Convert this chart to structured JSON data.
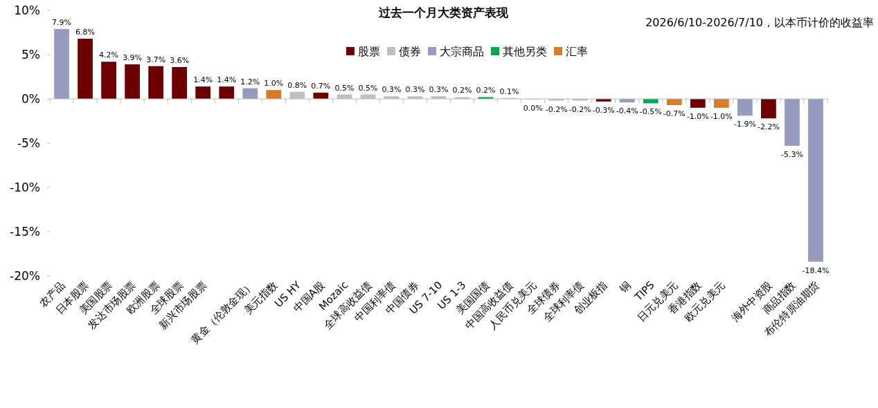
{
  "chart_data": {
    "type": "bar",
    "title": "过去一个月大类资产表现",
    "subtitle": "2026/6/10-2026/7/10，以本币计价的收益率",
    "categories": [
      "农产品",
      "日本股票",
      "美国股票",
      "发达市场股票",
      "欧洲股票",
      "全球股票",
      "新兴市场股票",
      null,
      "黄金（伦敦金现）",
      "美元指数",
      "US HY",
      "中国A股",
      "Mozaic",
      "全球高收益债",
      "中国利率债",
      "中国债券",
      "US 7-10",
      "US 1-3",
      "美国国债",
      "中国高收益债",
      "人民币兑美元",
      "全球债券",
      "全球利率债",
      "创业板指",
      "铜",
      "TIPS",
      "日元兑美元",
      "香港指数",
      "欧元兑美元",
      null,
      "海外中资股",
      "商品指数",
      "布伦特原油期货"
    ],
    "series": [
      {
        "name": "股票",
        "color": "#6f0000",
        "values": [
          null,
          6.8,
          4.2,
          3.9,
          3.7,
          3.6,
          1.4,
          1.4,
          null,
          null,
          null,
          0.7,
          null,
          null,
          null,
          null,
          null,
          null,
          null,
          null,
          null,
          null,
          null,
          -0.3,
          null,
          null,
          null,
          -1.0,
          null,
          null,
          -2.2,
          null,
          null
        ],
        "value_labels": [
          null,
          "6.8%",
          "4.2%",
          "3.9%",
          "3.7%",
          "3.6%",
          "1.4%",
          "1.4%",
          null,
          null,
          null,
          "0.7%",
          null,
          null,
          null,
          null,
          null,
          null,
          null,
          null,
          null,
          null,
          null,
          "-0.3%",
          null,
          null,
          null,
          "-1.0%",
          null,
          null,
          "-2.2%",
          null,
          null
        ]
      },
      {
        "name": "债券",
        "color": "#c0c0c0",
        "values": [
          null,
          null,
          null,
          null,
          null,
          null,
          null,
          null,
          null,
          null,
          0.8,
          null,
          0.5,
          0.5,
          0.3,
          0.3,
          0.3,
          0.2,
          null,
          0.1,
          null,
          -0.2,
          -0.2,
          null,
          null,
          null,
          null,
          null,
          null,
          null,
          null,
          null,
          null
        ],
        "value_labels": [
          null,
          null,
          null,
          null,
          null,
          null,
          null,
          null,
          null,
          null,
          "0.8%",
          null,
          "0.5%",
          "0.5%",
          "0.3%",
          "0.3%",
          "0.3%",
          "0.2%",
          null,
          "0.1%",
          null,
          "-0.2%",
          "-0.2%",
          null,
          null,
          null,
          null,
          null,
          null,
          null,
          null,
          null,
          null
        ]
      },
      {
        "name": "大宗商品",
        "color": "#959cc0",
        "values": [
          7.9,
          null,
          null,
          null,
          null,
          null,
          null,
          null,
          1.2,
          null,
          null,
          null,
          null,
          null,
          null,
          null,
          null,
          null,
          null,
          null,
          null,
          null,
          null,
          null,
          -0.4,
          null,
          null,
          null,
          null,
          -1.9,
          null,
          -5.3,
          -18.4
        ],
        "value_labels": [
          "7.9%",
          null,
          null,
          null,
          null,
          null,
          null,
          null,
          "1.2%",
          null,
          null,
          null,
          null,
          null,
          null,
          null,
          null,
          null,
          null,
          null,
          null,
          null,
          null,
          null,
          "-0.4%",
          null,
          null,
          null,
          null,
          "-1.9%",
          null,
          "-5.3%",
          "-18.4%"
        ]
      },
      {
        "name": "其他另类",
        "color": "#00a650",
        "values": [
          null,
          null,
          null,
          null,
          null,
          null,
          null,
          null,
          null,
          null,
          null,
          null,
          null,
          null,
          null,
          null,
          null,
          null,
          0.2,
          null,
          null,
          null,
          null,
          null,
          null,
          -0.5,
          null,
          null,
          null,
          null,
          null,
          null,
          null
        ],
        "value_labels": [
          null,
          null,
          null,
          null,
          null,
          null,
          null,
          null,
          null,
          null,
          null,
          null,
          null,
          null,
          null,
          null,
          null,
          null,
          "0.2%",
          null,
          null,
          null,
          null,
          null,
          null,
          "-0.5%",
          null,
          null,
          null,
          null,
          null,
          null,
          null
        ]
      },
      {
        "name": "汇率",
        "color": "#d97a2b",
        "values": [
          null,
          null,
          null,
          null,
          null,
          null,
          null,
          null,
          null,
          1.0,
          null,
          null,
          null,
          null,
          null,
          null,
          null,
          null,
          null,
          null,
          -0.04,
          null,
          null,
          null,
          null,
          null,
          -0.7,
          null,
          -1.0,
          null,
          null,
          null,
          null
        ],
        "value_labels": [
          null,
          null,
          null,
          null,
          null,
          null,
          null,
          null,
          null,
          "1.0%",
          null,
          null,
          null,
          null,
          null,
          null,
          null,
          null,
          null,
          null,
          "0.0%",
          null,
          null,
          null,
          null,
          null,
          "-0.7%",
          null,
          "-1.0%",
          null,
          null,
          null,
          null
        ]
      }
    ],
    "ylim": [
      -20,
      10
    ],
    "yticks": [
      {
        "value": -20,
        "label": "-20%"
      },
      {
        "value": -15,
        "label": "-15%"
      },
      {
        "value": -10,
        "label": "-10%"
      },
      {
        "value": -5,
        "label": "-5%"
      },
      {
        "value": 0,
        "label": "0%"
      },
      {
        "value": 5,
        "label": "5%"
      },
      {
        "value": 10,
        "label": "10%"
      }
    ],
    "legend": "top"
  }
}
